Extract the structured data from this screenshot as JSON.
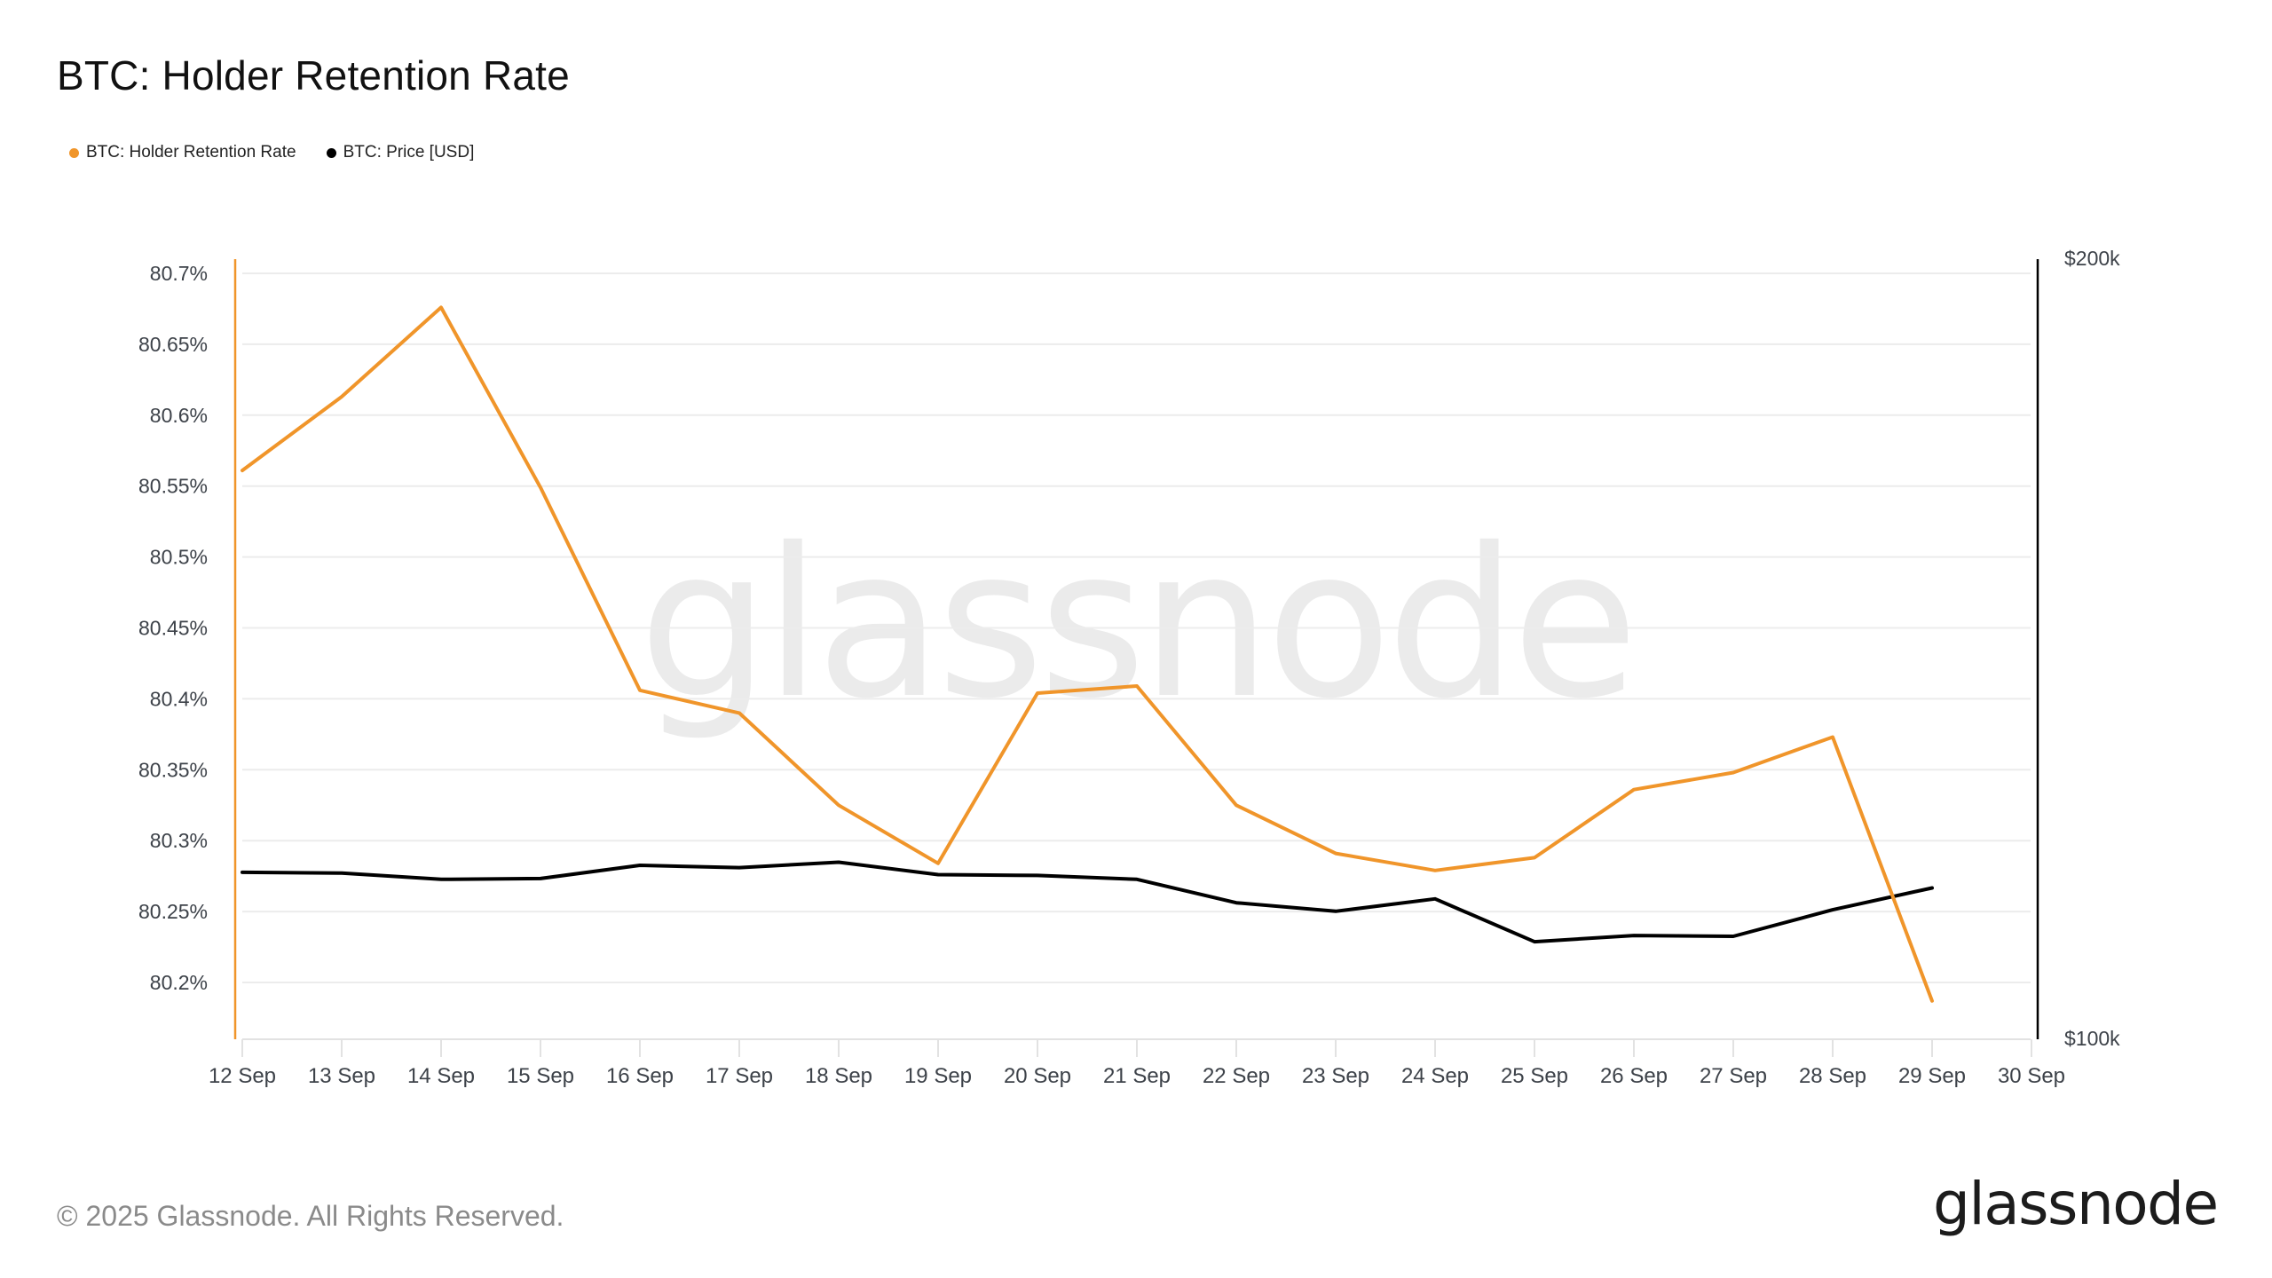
{
  "header": {
    "title": "BTC: Holder Retention Rate"
  },
  "legend": [
    {
      "label": "BTC: Holder Retention Rate",
      "color": "#f0952a"
    },
    {
      "label": "BTC: Price [USD]",
      "color": "#000000"
    }
  ],
  "watermark": "glassnode",
  "footer": {
    "copyright": "© 2025 Glassnode. All Rights Reserved.",
    "logo": "glassnode"
  },
  "chart_data": {
    "type": "line",
    "title": "BTC: Holder Retention Rate",
    "xlabel": "",
    "ylabel": "",
    "categories": [
      "12 Sep",
      "13 Sep",
      "14 Sep",
      "15 Sep",
      "16 Sep",
      "17 Sep",
      "18 Sep",
      "19 Sep",
      "20 Sep",
      "21 Sep",
      "22 Sep",
      "23 Sep",
      "24 Sep",
      "25 Sep",
      "26 Sep",
      "27 Sep",
      "28 Sep",
      "29 Sep",
      "30 Sep"
    ],
    "series": [
      {
        "name": "BTC: Holder Retention Rate",
        "axis": "left",
        "color": "#f0952a",
        "unit": "%",
        "values": [
          80.561,
          80.613,
          80.676,
          80.549,
          80.406,
          80.39,
          80.325,
          80.284,
          80.404,
          80.409,
          80.325,
          80.291,
          80.279,
          80.288,
          80.336,
          80.348,
          80.373,
          80.187,
          null
        ]
      },
      {
        "name": "BTC: Price [USD]",
        "axis": "right",
        "color": "#000000",
        "unit": "USD (thousands)",
        "values": [
          121.4,
          121.3,
          120.5,
          120.6,
          122.3,
          122.0,
          122.7,
          121.1,
          121.0,
          120.5,
          117.5,
          116.4,
          118.0,
          112.5,
          113.3,
          113.2,
          116.6,
          119.4,
          null
        ]
      }
    ],
    "y_left": {
      "ticks": [
        "80.7%",
        "80.65%",
        "80.6%",
        "80.55%",
        "80.5%",
        "80.45%",
        "80.4%",
        "80.35%",
        "80.3%",
        "80.25%",
        "80.2%"
      ],
      "tick_values": [
        80.7,
        80.65,
        80.6,
        80.55,
        80.5,
        80.45,
        80.4,
        80.35,
        80.3,
        80.25,
        80.2
      ],
      "ylim": [
        80.16,
        80.71
      ]
    },
    "y_right": {
      "ticks": [
        "$200k",
        "$100k"
      ],
      "tick_values": [
        200,
        100
      ],
      "ylim": [
        100,
        200
      ],
      "scale": "log-like (displayed top $200k, bottom $100k)"
    },
    "grid": true,
    "legend_position": "top-left"
  }
}
